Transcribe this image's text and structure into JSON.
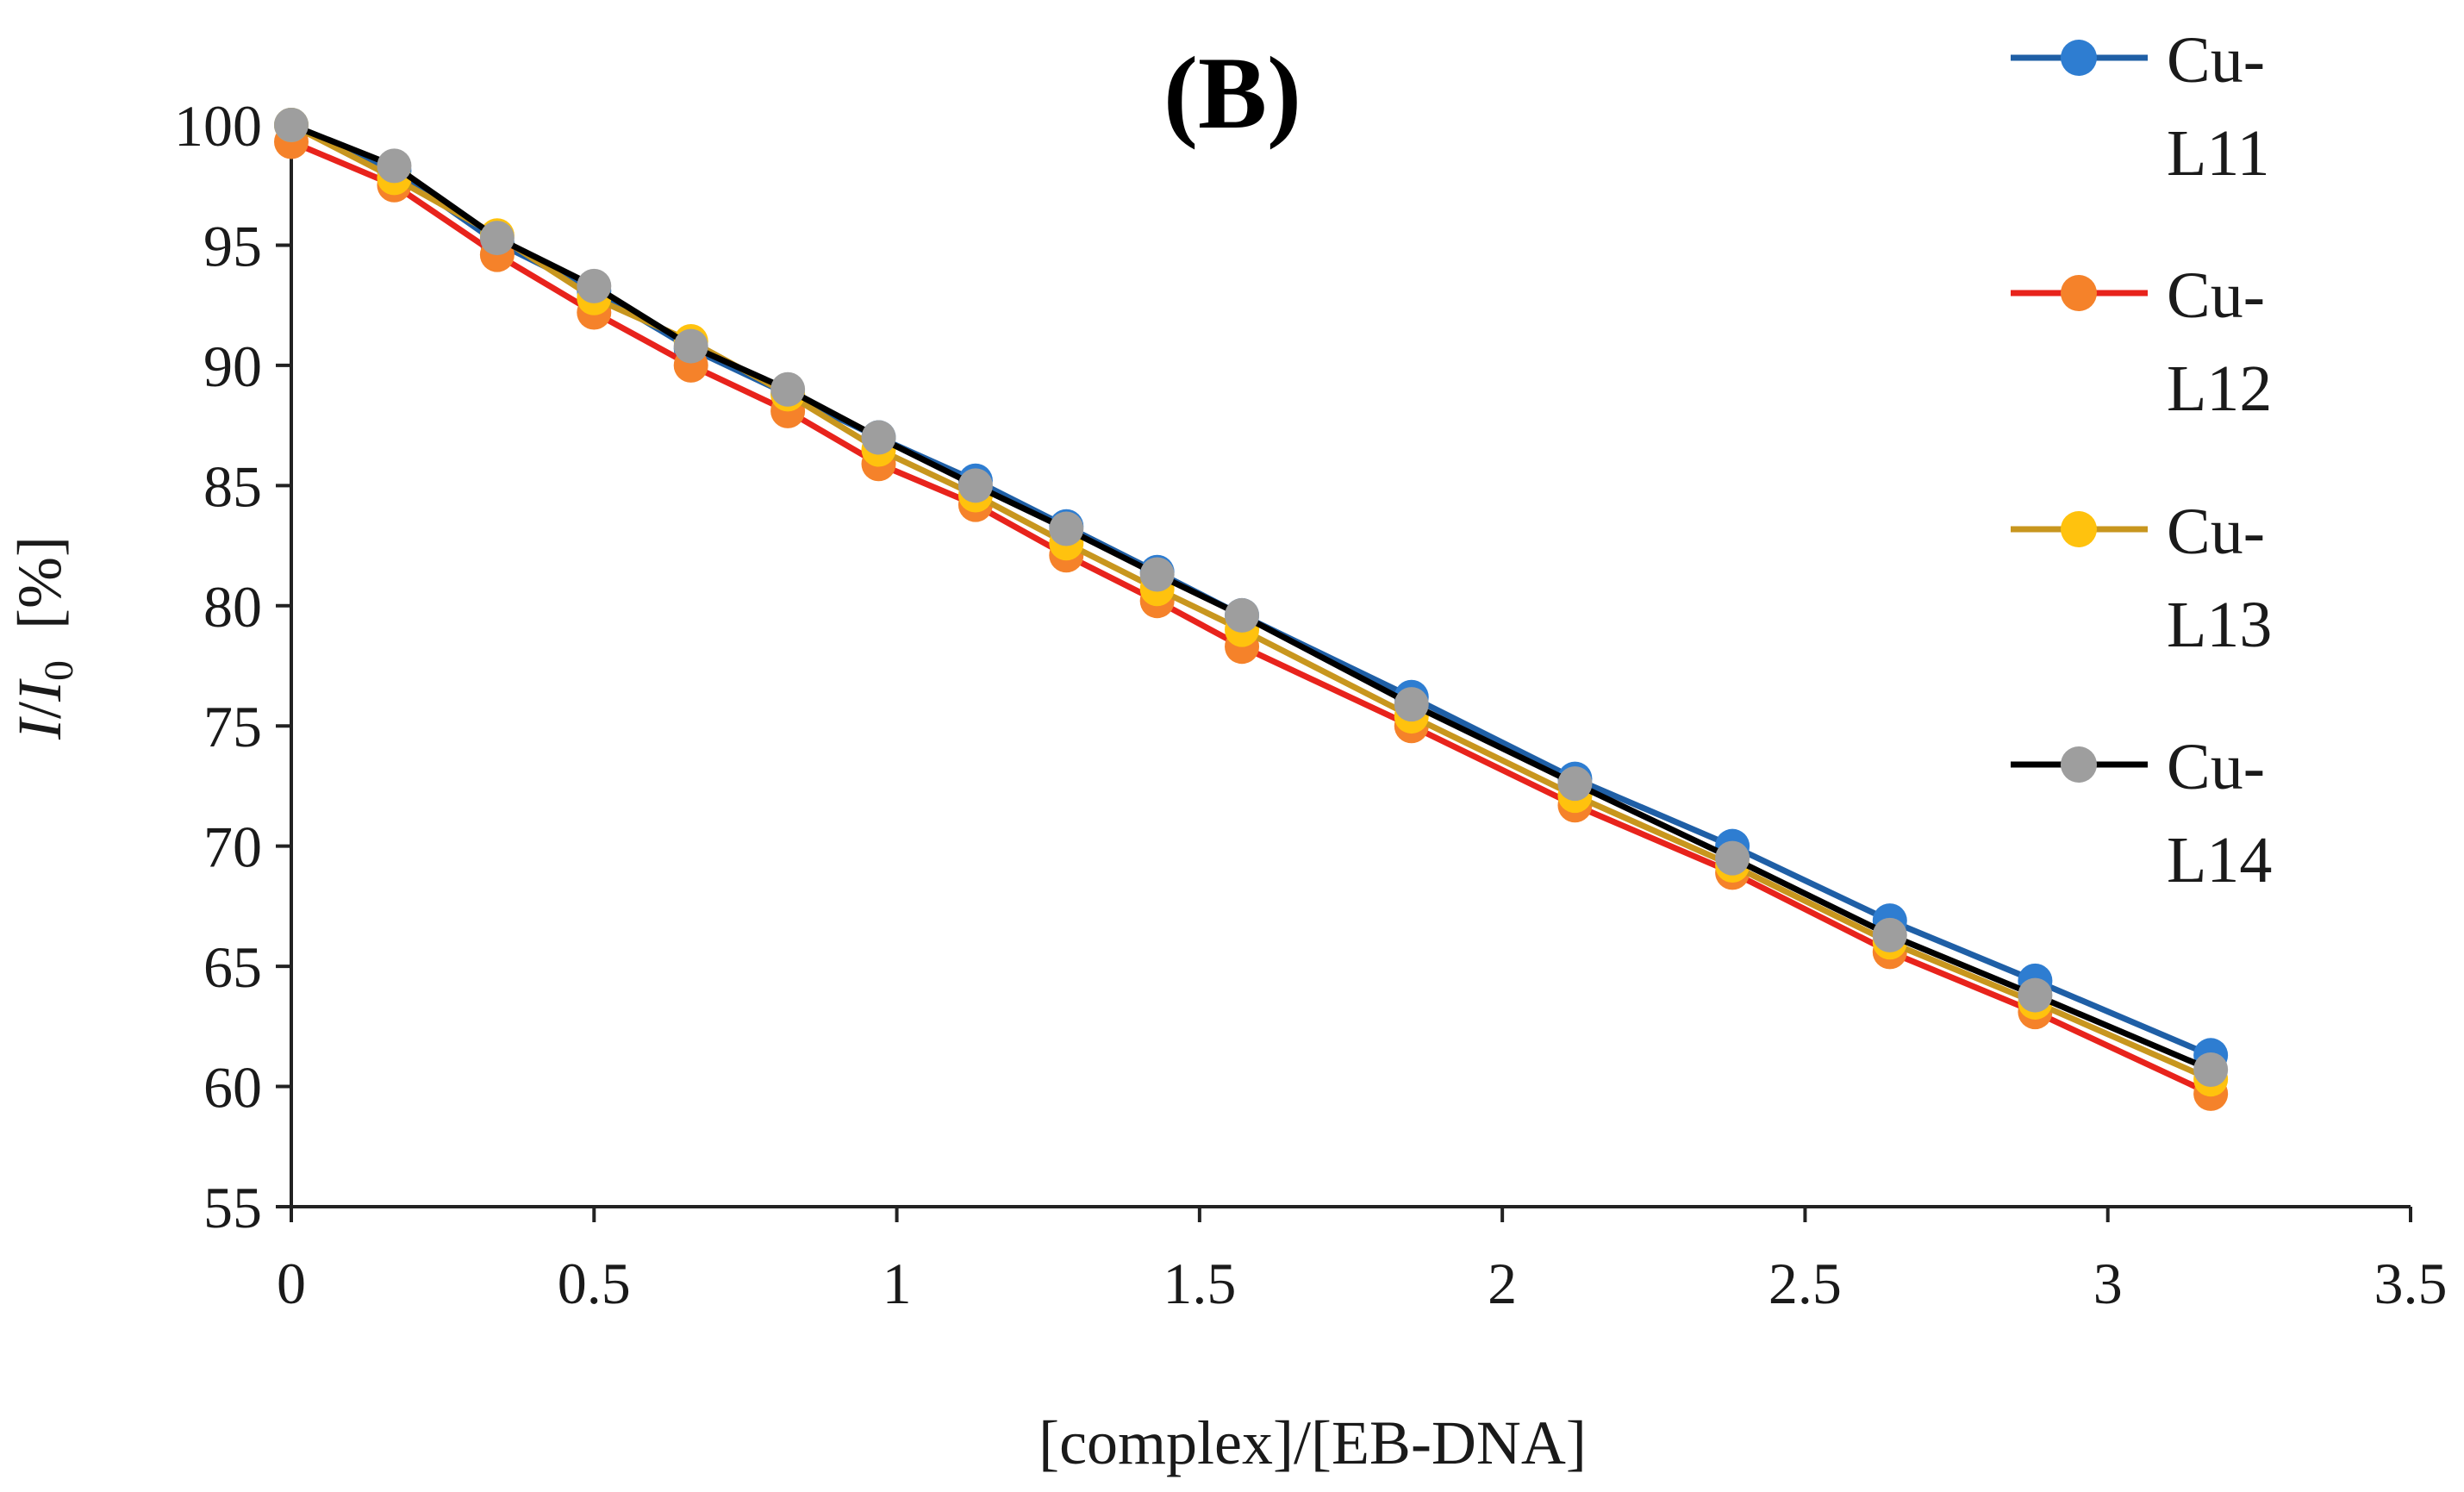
{
  "chart_data": {
    "type": "line",
    "title": "(B)",
    "xlabel": "[complex]/[EB-DNA]",
    "ylabel": {
      "i1": "I",
      "slash": "/",
      "i2": "I",
      "sub": "0",
      "unit": "  [%]"
    },
    "xlim": [
      0,
      3.5
    ],
    "ylim": [
      55,
      100
    ],
    "xticks": [
      "0",
      "0.5",
      "1",
      "1.5",
      "2",
      "2.5",
      "3",
      "3.5"
    ],
    "yticks": [
      "55",
      "60",
      "65",
      "70",
      "75",
      "80",
      "85",
      "90",
      "95",
      "100"
    ],
    "xtick_values": [
      0,
      0.5,
      1,
      1.5,
      2,
      2.5,
      3,
      3.5
    ],
    "ytick_values": [
      55,
      60,
      65,
      70,
      75,
      80,
      85,
      90,
      95,
      100
    ],
    "legend_position": "top-right",
    "x": [
      0,
      0.17,
      0.34,
      0.5,
      0.66,
      0.82,
      0.97,
      1.13,
      1.28,
      1.43,
      1.57,
      1.85,
      2.12,
      2.38,
      2.64,
      2.88,
      3.17
    ],
    "series": [
      {
        "name": "Cu-L11",
        "legend_line1": "Cu-",
        "legend_line2": "L11",
        "line_color": "#1f5fa6",
        "marker_color": "#2e7dd1",
        "values": [
          100,
          98.1,
          95.1,
          93.1,
          90.7,
          88.8,
          87.0,
          85.2,
          83.3,
          81.4,
          79.6,
          76.2,
          72.8,
          70.0,
          66.9,
          64.4,
          61.3
        ]
      },
      {
        "name": "Cu-L12",
        "legend_line1": "Cu-",
        "legend_line2": "L12",
        "line_color": "#e8231c",
        "marker_color": "#f5822a",
        "values": [
          99.3,
          97.5,
          94.6,
          92.2,
          90.0,
          88.1,
          85.9,
          84.2,
          82.1,
          80.2,
          78.3,
          75.0,
          71.7,
          68.9,
          65.6,
          63.1,
          59.7
        ]
      },
      {
        "name": "Cu-L13",
        "legend_line1": "Cu-",
        "legend_line2": "L13",
        "line_color": "#c8961e",
        "marker_color": "#ffc20e",
        "values": [
          100,
          97.8,
          95.4,
          92.8,
          91.0,
          88.8,
          86.5,
          84.6,
          82.6,
          80.7,
          79.0,
          75.4,
          72.1,
          69.2,
          66.0,
          63.5,
          60.3
        ]
      },
      {
        "name": "Cu-L14",
        "legend_line1": "Cu-",
        "legend_line2": "L14",
        "line_color": "#000000",
        "marker_color": "#9e9e9e",
        "values": [
          100,
          98.3,
          95.3,
          93.3,
          90.8,
          89.0,
          87.0,
          85.0,
          83.2,
          81.3,
          79.6,
          75.9,
          72.6,
          69.5,
          66.3,
          63.8,
          60.7
        ]
      }
    ]
  }
}
